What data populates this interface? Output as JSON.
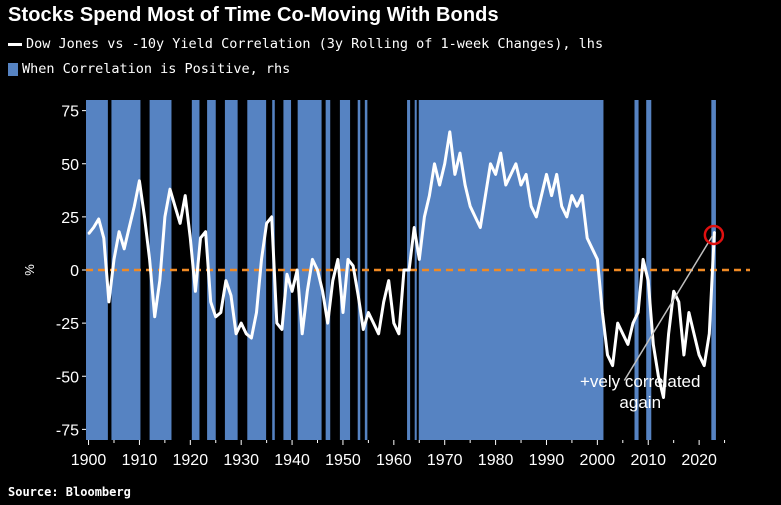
{
  "title": "Stocks Spend Most of Time Co-Moving With Bonds",
  "legend": {
    "line_label": "Dow Jones vs -10y Yield Correlation (3y Rolling of 1-week Changes), lhs",
    "bar_label": "When Correlation is Positive, rhs"
  },
  "source": "Source: Bloomberg",
  "annotation": {
    "line1": "+vely correlated",
    "line2": "again"
  },
  "colors": {
    "background": "#000000",
    "bars": "#5683c2",
    "line": "#ffffff",
    "zero_line": "#f08a24",
    "marker": "#e01010"
  },
  "chart_data": {
    "type": "line",
    "title": "Stocks Spend Most of Time Co-Moving With Bonds",
    "xlabel": "",
    "ylabel": "%",
    "xlim": [
      1899.5,
      2030
    ],
    "ylim": [
      -80,
      80
    ],
    "x_ticks": [
      "1900",
      "1910",
      "1920",
      "1930",
      "1940",
      "1950",
      "1960",
      "1970",
      "1980",
      "1990",
      "2000",
      "2010",
      "2020"
    ],
    "y_ticks": [
      "75",
      "50",
      "25",
      "0",
      "-25",
      "-50",
      "-75"
    ],
    "y_tick_values": [
      75,
      50,
      25,
      0,
      -25,
      -50,
      -75
    ],
    "reference_line": 0,
    "grid": false,
    "series": [
      {
        "name": "Dow Jones vs -10y Yield Correlation (3y Rolling of 1-week Changes), lhs",
        "kind": "line",
        "x": [
          1900,
          1901,
          1902,
          1903,
          1904,
          1905,
          1906,
          1907,
          1908,
          1909,
          1910,
          1911,
          1912,
          1913,
          1914,
          1915,
          1916,
          1917,
          1918,
          1919,
          1920,
          1921,
          1922,
          1923,
          1924,
          1925,
          1926,
          1927,
          1928,
          1929,
          1930,
          1931,
          1932,
          1933,
          1934,
          1935,
          1936,
          1937,
          1938,
          1939,
          1940,
          1941,
          1942,
          1943,
          1944,
          1945,
          1946,
          1947,
          1948,
          1949,
          1950,
          1951,
          1952,
          1953,
          1954,
          1955,
          1956,
          1957,
          1958,
          1959,
          1960,
          1961,
          1962,
          1963,
          1964,
          1965,
          1966,
          1967,
          1968,
          1969,
          1970,
          1971,
          1972,
          1973,
          1974,
          1975,
          1976,
          1977,
          1978,
          1979,
          1980,
          1981,
          1982,
          1983,
          1984,
          1985,
          1986,
          1987,
          1988,
          1989,
          1990,
          1991,
          1992,
          1993,
          1994,
          1995,
          1996,
          1997,
          1998,
          1999,
          2000,
          2001,
          2002,
          2003,
          2004,
          2005,
          2006,
          2007,
          2008,
          2009,
          2010,
          2011,
          2012,
          2013,
          2014,
          2015,
          2016,
          2017,
          2018,
          2019,
          2020,
          2021,
          2022,
          2023
        ],
        "values": [
          17,
          20,
          24,
          15,
          -15,
          5,
          18,
          10,
          20,
          30,
          42,
          25,
          5,
          -22,
          -5,
          25,
          38,
          30,
          22,
          35,
          15,
          -10,
          15,
          18,
          -15,
          -22,
          -20,
          -5,
          -12,
          -30,
          -25,
          -30,
          -32,
          -20,
          5,
          22,
          25,
          -25,
          -28,
          -2,
          -10,
          0,
          -30,
          -10,
          5,
          0,
          -10,
          -25,
          -5,
          5,
          -20,
          5,
          2,
          -12,
          -28,
          -20,
          -25,
          -30,
          -15,
          -5,
          -25,
          -30,
          0,
          0,
          20,
          5,
          25,
          35,
          50,
          40,
          50,
          65,
          45,
          55,
          40,
          30,
          25,
          20,
          35,
          50,
          45,
          55,
          40,
          45,
          50,
          40,
          45,
          30,
          25,
          35,
          45,
          35,
          45,
          30,
          25,
          35,
          30,
          35,
          15,
          10,
          5,
          -20,
          -40,
          -45,
          -25,
          -30,
          -35,
          -25,
          -20,
          5,
          -5,
          -35,
          -50,
          -60,
          -30,
          -10,
          -15,
          -40,
          -20,
          -30,
          -40,
          -45,
          -30,
          18
        ]
      },
      {
        "name": "When Correlation is Positive, rhs",
        "kind": "shaded_periods",
        "periods": [
          [
            1899.5,
            1903.8
          ],
          [
            1904.5,
            1910.2
          ],
          [
            1912,
            1916.3
          ],
          [
            1920.3,
            1921.8
          ],
          [
            1923.3,
            1925
          ],
          [
            1926.8,
            1929.3
          ],
          [
            1931.2,
            1934.9
          ],
          [
            1936.1,
            1936.6
          ],
          [
            1938.3,
            1939.8
          ],
          [
            1941.1,
            1945.8
          ],
          [
            1946.6,
            1947.5
          ],
          [
            1949.4,
            1951.4
          ],
          [
            1952.9,
            1953.4
          ],
          [
            1954.3,
            1954.8
          ],
          [
            1962.6,
            1963.2
          ],
          [
            1964.1,
            1964.5
          ],
          [
            1964.9,
            2001.2
          ],
          [
            2007.3,
            2008.1
          ],
          [
            2009.6,
            2010.6
          ],
          [
            2022.4,
            2023.3
          ]
        ]
      }
    ],
    "annotations": [
      {
        "text": "+vely correlated again",
        "x": 2010,
        "y": -55,
        "points_to": [
          2022.5,
          15
        ]
      }
    ]
  }
}
